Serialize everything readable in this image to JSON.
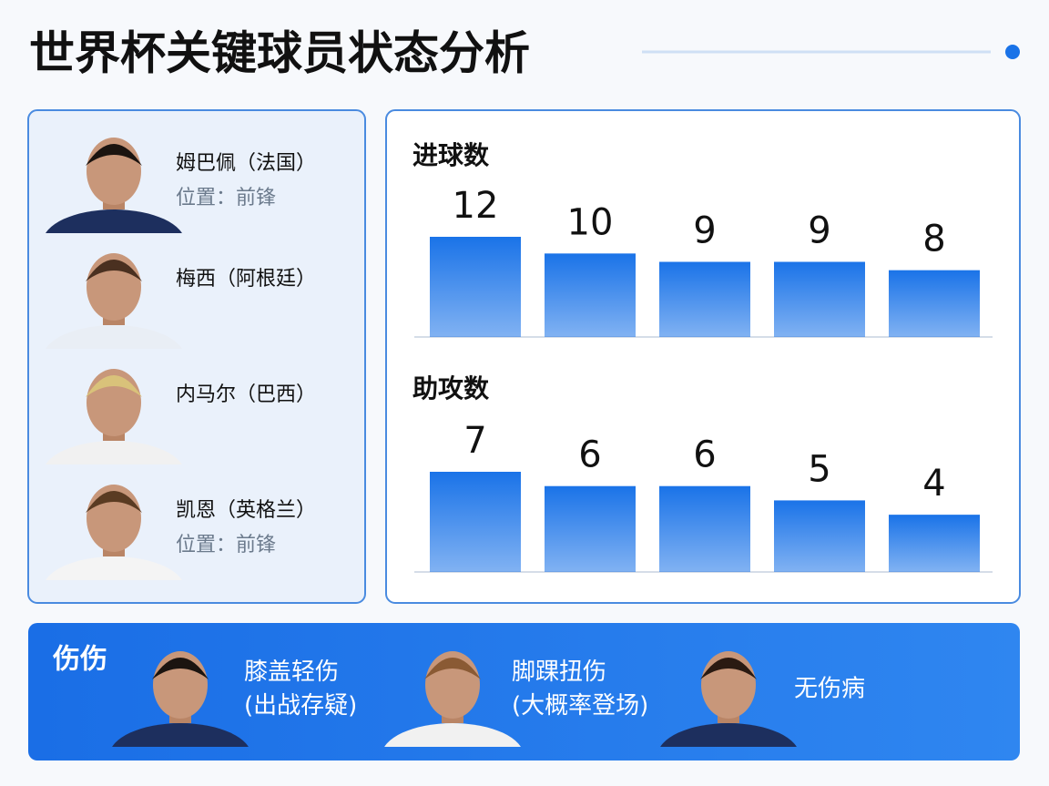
{
  "header": {
    "title": "世界杯关键球员状态分析"
  },
  "players": [
    {
      "name": "姆巴佩（法国）",
      "position": "位置：前锋"
    },
    {
      "name": "梅西（阿根廷）"
    },
    {
      "name": "内马尔（巴西）"
    },
    {
      "name": "凯恩（英格兰）",
      "position": "位置：前锋"
    }
  ],
  "chart_data": [
    {
      "type": "bar",
      "title": "进球数",
      "categories": [
        null,
        null,
        null,
        null,
        null
      ],
      "values": [
        12,
        10,
        9,
        9,
        8
      ],
      "color": "#1a73e8"
    },
    {
      "type": "bar",
      "title": "助攻数",
      "categories": [
        null,
        null,
        null,
        null,
        null
      ],
      "values": [
        7,
        6,
        6,
        5,
        4
      ],
      "color": "#1a73e8"
    }
  ],
  "injuries": {
    "title": "伤伤",
    "items": [
      {
        "lines": [
          "膝盖轻伤",
          "(出战存疑)"
        ]
      },
      {
        "lines": [
          "脚踝扭伤",
          "(大概率登场)"
        ]
      },
      {
        "lines": [
          "无伤病"
        ]
      }
    ]
  }
}
